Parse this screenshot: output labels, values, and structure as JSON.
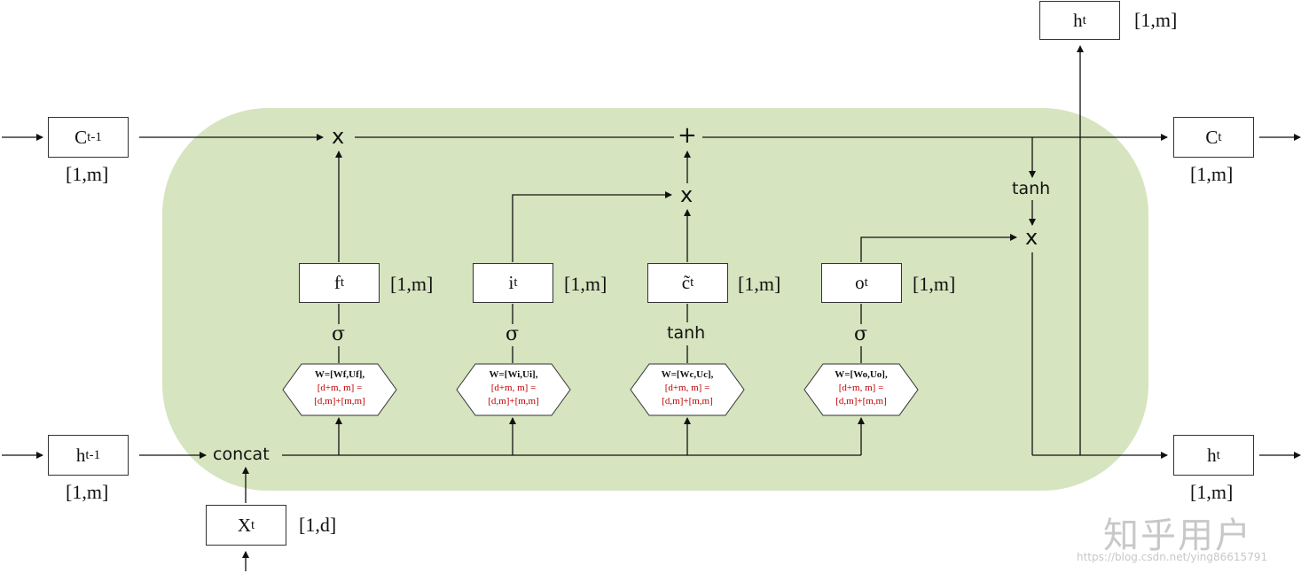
{
  "inputs": {
    "c_prev": {
      "main": "C",
      "sub": "t-1",
      "shape": "[1,m]"
    },
    "h_prev": {
      "main": "h",
      "sub": "t-1",
      "shape": "[1,m]"
    },
    "x_t": {
      "main": "X",
      "sub": "t",
      "shape": "[1,d]"
    }
  },
  "outputs": {
    "c_t": {
      "main": "C",
      "sub": "t",
      "shape": "[1,m]"
    },
    "h_t_right": {
      "main": "h",
      "sub": "t",
      "shape": "[1,m]"
    },
    "h_t_top": {
      "main": "h",
      "sub": "t",
      "shape": "[1,m]"
    }
  },
  "gates": [
    {
      "id": "f",
      "main": "f",
      "sub": "t",
      "shape": "[1,m]",
      "activation": "σ",
      "weight": "W=[Wf,Uf],",
      "dims1": "[d+m, m] =",
      "dims2": "[d,m]+[m,m]"
    },
    {
      "id": "i",
      "main": "i",
      "sub": "t",
      "shape": "[1,m]",
      "activation": "σ",
      "weight": "W=[Wi,Ui],",
      "dims1": "[d+m, m] =",
      "dims2": "[d,m]+[m,m]"
    },
    {
      "id": "c",
      "main": "c̃",
      "sub": "t",
      "shape": "[1,m]",
      "activation": "tanh",
      "weight": "W=[Wc,Uc],",
      "dims1": "[d+m, m] =",
      "dims2": "[d,m]+[m,m]"
    },
    {
      "id": "o",
      "main": "o",
      "sub": "t",
      "shape": "[1,m]",
      "activation": "σ",
      "weight": "W=[Wo,Uo],",
      "dims1": "[d+m, m] =",
      "dims2": "[d,m]+[m,m]"
    }
  ],
  "operators": {
    "concat": "concat",
    "multiply": "x",
    "add": "+",
    "tanh": "tanh"
  },
  "watermark": {
    "brand": "知乎用户",
    "url": "https://blog.csdn.net/ying86615791"
  },
  "colors": {
    "cell_background": "#d6e4bf",
    "line": "#111111",
    "dims_text": "#c00000"
  }
}
